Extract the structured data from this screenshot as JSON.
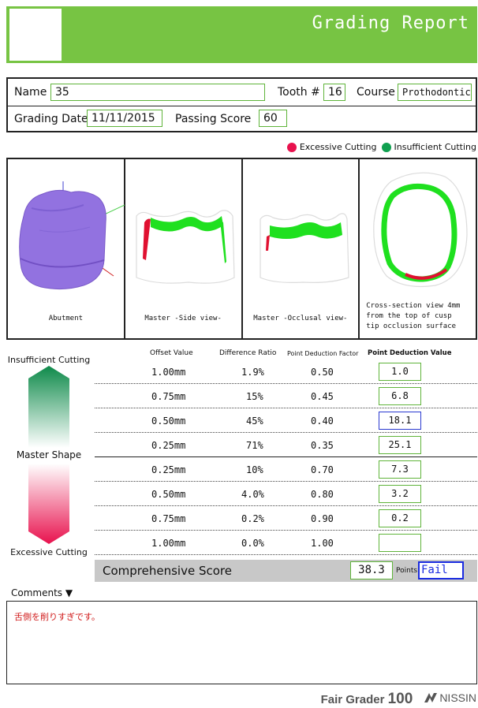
{
  "header": {
    "title": "Grading Report"
  },
  "info": {
    "name_label": "Name",
    "name_value": "35",
    "tooth_label": "Tooth #",
    "tooth_value": "16",
    "course_label": "Course",
    "course_value": "Prothodontic",
    "date_label": "Grading Date",
    "date_value": "11/11/2015",
    "passing_label": "Passing Score",
    "passing_value": "60"
  },
  "legend": {
    "excessive": "Excessive Cutting",
    "insufficient": "Insufficient Cutting",
    "excessive_color": "#e8124e",
    "insufficient_color": "#10a050"
  },
  "panels": [
    {
      "caption": "Abutment"
    },
    {
      "caption": "Master -Side view-"
    },
    {
      "caption": "Master -Occlusal view-"
    },
    {
      "caption_lines": [
        "Cross-section view 4mm",
        "from the top of cusp",
        "tip occlusion surface"
      ]
    }
  ],
  "scale": {
    "top_label": "Insufficient Cutting",
    "middle_label": "Master Shape",
    "bottom_label": "Excessive Cutting"
  },
  "table": {
    "headers": [
      "Offset Value",
      "Difference Ratio",
      "Point Deduction Factor",
      "Point Deduction Value"
    ],
    "rows": [
      {
        "offset": "1.00mm",
        "ratio": "1.9%",
        "factor": "0.50",
        "value": "1.0"
      },
      {
        "offset": "0.75mm",
        "ratio": "15%",
        "factor": "0.45",
        "value": "6.8"
      },
      {
        "offset": "0.50mm",
        "ratio": "45%",
        "factor": "0.40",
        "value": "18.1"
      },
      {
        "offset": "0.25mm",
        "ratio": "71%",
        "factor": "0.35",
        "value": "25.1"
      },
      {
        "offset": "0.25mm",
        "ratio": "10%",
        "factor": "0.70",
        "value": "7.3"
      },
      {
        "offset": "0.50mm",
        "ratio": "4.0%",
        "factor": "0.80",
        "value": "3.2"
      },
      {
        "offset": "0.75mm",
        "ratio": "0.2%",
        "factor": "0.90",
        "value": "0.2"
      },
      {
        "offset": "1.00mm",
        "ratio": "0.0%",
        "factor": "1.00",
        "value": ""
      }
    ]
  },
  "score": {
    "label": "Comprehensive Score",
    "value": "38.3",
    "unit": "Points",
    "result": "Fail"
  },
  "comments": {
    "label": "Comments ▼",
    "text": "舌側を削りすぎです。"
  },
  "footer": {
    "product": "Fair Grader",
    "product_number": "100",
    "maker": "NISSIN"
  }
}
